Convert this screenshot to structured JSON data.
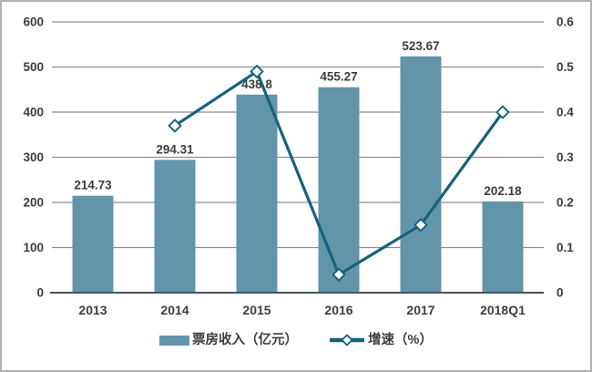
{
  "chart_data": {
    "type": "combo-bar-line",
    "categories": [
      "2013",
      "2014",
      "2015",
      "2016",
      "2017",
      "2018Q1"
    ],
    "series": [
      {
        "name": "票房收入（亿元）",
        "type": "bar",
        "axis": "left",
        "values": [
          214.73,
          294.31,
          438.8,
          455.27,
          523.67,
          202.18
        ],
        "labels": [
          "214.73",
          "294.31",
          "438.8",
          "455.27",
          "523.67",
          "202.18"
        ]
      },
      {
        "name": "增速（%）",
        "type": "line",
        "axis": "right",
        "marker": "diamond",
        "values": [
          null,
          0.37,
          0.49,
          0.04,
          0.15,
          0.4
        ]
      }
    ],
    "left_axis": {
      "min": 0,
      "max": 600,
      "step": 100,
      "ticks": [
        "600",
        "500",
        "400",
        "300",
        "200",
        "100",
        "0"
      ]
    },
    "right_axis": {
      "min": 0,
      "max": 0.6,
      "step": 0.1,
      "ticks": [
        "0.6",
        "0.5",
        "0.4",
        "0.3",
        "0.2",
        "0.1",
        "0"
      ]
    },
    "grid": true,
    "legend_position": "bottom"
  },
  "colors": {
    "bar": "#6294aa",
    "line": "#17627a",
    "marker_fill": "#ffffff",
    "grid": "#8e8e8e",
    "axis": "#47525d",
    "text": "#3d3d3d",
    "border": "#b2b2b2",
    "background": "#ffffff"
  }
}
